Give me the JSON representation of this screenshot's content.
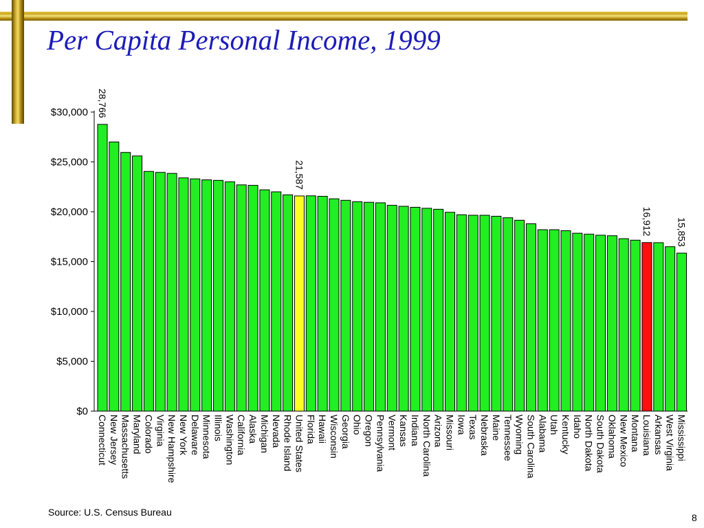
{
  "slide": {
    "title": "Per Capita Personal Income, 1999",
    "source": "Source:  U.S. Census Bureau",
    "page_number": "8"
  },
  "colors": {
    "accent_gold": "#c9a325",
    "title_blue": "#1c1cb8",
    "bar_default": "#22ee22",
    "bar_us": "#ffff22",
    "bar_louisiana": "#ff1010"
  },
  "chart_data": {
    "type": "bar",
    "title": "Per Capita Personal Income, 1999",
    "xlabel": "",
    "ylabel": "",
    "ylim": [
      0,
      30000
    ],
    "yticks": [
      {
        "value": 0,
        "label": "$0"
      },
      {
        "value": 5000,
        "label": "$5,000"
      },
      {
        "value": 10000,
        "label": "$10,000"
      },
      {
        "value": 15000,
        "label": "$15,000"
      },
      {
        "value": 20000,
        "label": "$20,000"
      },
      {
        "value": 25000,
        "label": "$25,000"
      },
      {
        "value": 30000,
        "label": "$30,000"
      }
    ],
    "grid": false,
    "categories": [
      "Connecticut",
      "New Jersey",
      "Massachusetts",
      "Maryland",
      "Colorado",
      "Virginia",
      "New Hampshire",
      "New York",
      "Delaware",
      "Minnesota",
      "Illinois",
      "Washington",
      "California",
      "Alaska",
      "Michigan",
      "Nevada",
      "Rhode Island",
      "United States",
      "Florida",
      "Hawaii",
      "Wisconsin",
      "Georgia",
      "Ohio",
      "Oregon",
      "Pennsylvania",
      "Vermont",
      "Kansas",
      "Indiana",
      "North Carolina",
      "Arizona",
      "Missouri",
      "Iowa",
      "Texas",
      "Nebraska",
      "Maine",
      "Tennessee",
      "Wyoming",
      "South Carolina",
      "Alabama",
      "Utah",
      "Kentucky",
      "Idaho",
      "North Dakota",
      "South Dakota",
      "Oklahoma",
      "New Mexico",
      "Montana",
      "Louisiana",
      "Arkansas",
      "West Virginia",
      "Mississippi"
    ],
    "values": [
      28766,
      27000,
      25950,
      25600,
      24050,
      23950,
      23850,
      23400,
      23300,
      23200,
      23150,
      23000,
      22700,
      22650,
      22200,
      22000,
      21700,
      21587,
      21600,
      21550,
      21300,
      21150,
      21000,
      20950,
      20900,
      20650,
      20550,
      20450,
      20350,
      20250,
      19950,
      19700,
      19650,
      19650,
      19550,
      19400,
      19150,
      18800,
      18200,
      18200,
      18100,
      17850,
      17750,
      17650,
      17600,
      17300,
      17150,
      16912,
      16900,
      16500,
      15853
    ],
    "highlights": {
      "United States": "#ffff22",
      "Louisiana": "#ff1010"
    },
    "data_labels": [
      {
        "category": "Connecticut",
        "text": "28,766"
      },
      {
        "category": "United States",
        "text": "21,587"
      },
      {
        "category": "Louisiana",
        "text": "16,912"
      },
      {
        "category": "Mississippi",
        "text": "15,853"
      }
    ]
  }
}
